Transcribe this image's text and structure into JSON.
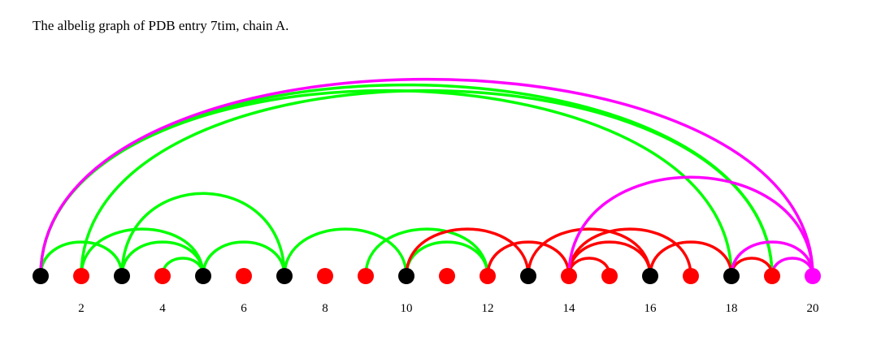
{
  "title": "The albelig graph of PDB entry 7tim, chain A.",
  "colors": {
    "black": "#000000",
    "red": "#ff0000",
    "green": "#00ff00",
    "magenta": "#ff00ff"
  },
  "nodes": [
    {
      "id": 1,
      "color": "black"
    },
    {
      "id": 2,
      "color": "red"
    },
    {
      "id": 3,
      "color": "black"
    },
    {
      "id": 4,
      "color": "red"
    },
    {
      "id": 5,
      "color": "black"
    },
    {
      "id": 6,
      "color": "red"
    },
    {
      "id": 7,
      "color": "black"
    },
    {
      "id": 8,
      "color": "red"
    },
    {
      "id": 9,
      "color": "red"
    },
    {
      "id": 10,
      "color": "black"
    },
    {
      "id": 11,
      "color": "red"
    },
    {
      "id": 12,
      "color": "red"
    },
    {
      "id": 13,
      "color": "black"
    },
    {
      "id": 14,
      "color": "red"
    },
    {
      "id": 15,
      "color": "red"
    },
    {
      "id": 16,
      "color": "black"
    },
    {
      "id": 17,
      "color": "red"
    },
    {
      "id": 18,
      "color": "black"
    },
    {
      "id": 19,
      "color": "red"
    },
    {
      "id": 20,
      "color": "magenta"
    }
  ],
  "ticks": [
    "2",
    "4",
    "6",
    "8",
    "10",
    "12",
    "14",
    "16",
    "18",
    "20"
  ],
  "edges": [
    {
      "from": 1,
      "to": 3,
      "color": "green"
    },
    {
      "from": 1,
      "to": 18,
      "color": "green"
    },
    {
      "from": 1,
      "to": 19,
      "color": "green"
    },
    {
      "from": 1,
      "to": 20,
      "color": "magenta"
    },
    {
      "from": 2,
      "to": 5,
      "color": "green"
    },
    {
      "from": 2,
      "to": 19,
      "color": "green"
    },
    {
      "from": 3,
      "to": 5,
      "color": "green"
    },
    {
      "from": 3,
      "to": 7,
      "color": "green"
    },
    {
      "from": 4,
      "to": 5,
      "color": "green"
    },
    {
      "from": 5,
      "to": 7,
      "color": "green"
    },
    {
      "from": 7,
      "to": 10,
      "color": "green"
    },
    {
      "from": 9,
      "to": 12,
      "color": "green"
    },
    {
      "from": 10,
      "to": 12,
      "color": "green"
    },
    {
      "from": 10,
      "to": 13,
      "color": "red"
    },
    {
      "from": 12,
      "to": 14,
      "color": "red"
    },
    {
      "from": 13,
      "to": 16,
      "color": "red"
    },
    {
      "from": 14,
      "to": 15,
      "color": "red"
    },
    {
      "from": 14,
      "to": 16,
      "color": "red"
    },
    {
      "from": 14,
      "to": 17,
      "color": "red"
    },
    {
      "from": 14,
      "to": 20,
      "color": "magenta"
    },
    {
      "from": 16,
      "to": 18,
      "color": "red"
    },
    {
      "from": 18,
      "to": 19,
      "color": "red"
    },
    {
      "from": 18,
      "to": 20,
      "color": "magenta"
    },
    {
      "from": 19,
      "to": 20,
      "color": "magenta"
    }
  ]
}
